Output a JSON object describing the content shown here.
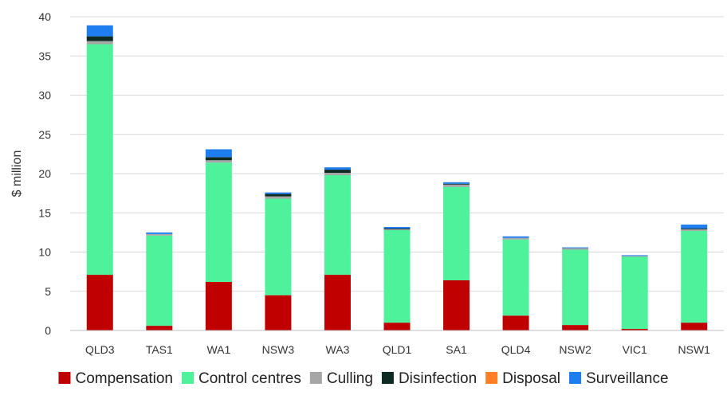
{
  "chart_data": {
    "type": "bar",
    "stacked": true,
    "title": "",
    "xlabel": "",
    "ylabel": "$ million",
    "ylim": [
      0,
      40
    ],
    "yticks": [
      0,
      5,
      10,
      15,
      20,
      25,
      30,
      35,
      40
    ],
    "grid": "horizontal",
    "legend": "bottom",
    "categories": [
      "QLD3",
      "TAS1",
      "WA1",
      "NSW3",
      "WA3",
      "QLD1",
      "SA1",
      "QLD4",
      "NSW2",
      "VIC1",
      "NSW1"
    ],
    "series": [
      {
        "name": "Compensation",
        "color": "#c00000",
        "values": [
          7.1,
          0.6,
          6.2,
          4.5,
          7.1,
          1.0,
          6.4,
          1.9,
          0.7,
          0.2,
          1.0
        ]
      },
      {
        "name": "Control centres",
        "color": "#4df29b",
        "values": [
          29.4,
          11.5,
          15.2,
          12.3,
          12.7,
          11.8,
          11.9,
          9.7,
          9.6,
          9.2,
          11.7
        ]
      },
      {
        "name": "Culling",
        "color": "#a6a6a6",
        "values": [
          0.4,
          0.2,
          0.3,
          0.3,
          0.3,
          0.1,
          0.3,
          0.2,
          0.2,
          0.1,
          0.2
        ]
      },
      {
        "name": "Disinfection",
        "color": "#0d2b22",
        "values": [
          0.6,
          0.0,
          0.4,
          0.3,
          0.4,
          0.1,
          0.1,
          0.0,
          0.0,
          0.0,
          0.1
        ]
      },
      {
        "name": "Disposal",
        "color": "#ff7f27",
        "values": [
          0.0,
          0.0,
          0.0,
          0.0,
          0.0,
          0.0,
          0.0,
          0.0,
          0.0,
          0.0,
          0.0
        ]
      },
      {
        "name": "Surveillance",
        "color": "#1e7ef0",
        "values": [
          1.4,
          0.2,
          1.0,
          0.2,
          0.3,
          0.2,
          0.2,
          0.2,
          0.1,
          0.1,
          0.5
        ]
      }
    ]
  }
}
